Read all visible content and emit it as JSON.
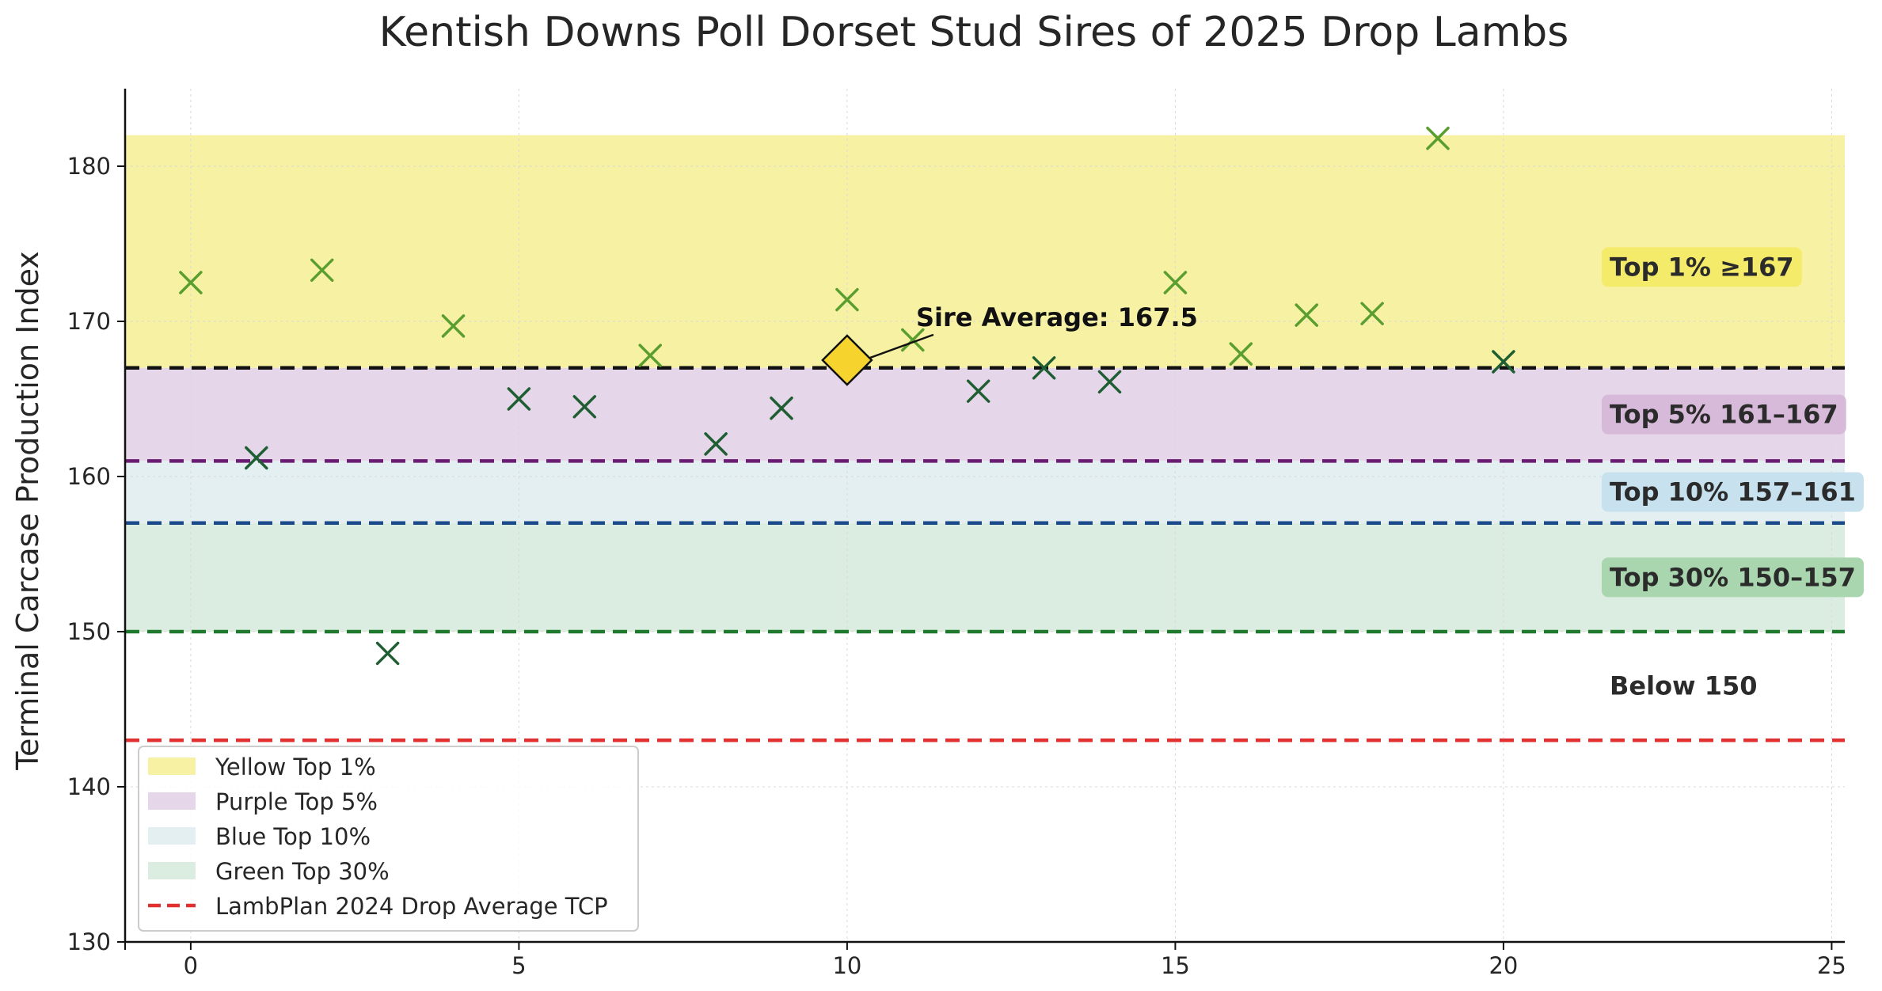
{
  "chart_data": {
    "type": "scatter",
    "title": "Kentish Downs Poll Dorset Stud Sires of 2025 Drop Lambs",
    "xlabel": "",
    "ylabel": "Terminal Carcase Production Index",
    "xlim": [
      -1,
      25.2
    ],
    "ylim": [
      130,
      185
    ],
    "x_ticks": [
      0,
      5,
      10,
      15,
      20,
      25
    ],
    "y_ticks": [
      130,
      140,
      150,
      160,
      170,
      180
    ],
    "grid": true,
    "bands": [
      {
        "name": "Yellow Top 1%",
        "from": 167,
        "to": 182,
        "color": "#f7f1a4"
      },
      {
        "name": "Purple Top 5%",
        "from": 161,
        "to": 167,
        "color": "#e6d6e9"
      },
      {
        "name": "Blue Top 10%",
        "from": 157,
        "to": 161,
        "color": "#e4eff2"
      },
      {
        "name": "Green Top 30%",
        "from": 150,
        "to": 157,
        "color": "#dbede0"
      }
    ],
    "threshold_lines": [
      {
        "y": 167,
        "color": "#111111"
      },
      {
        "y": 161,
        "color": "#6a1b72"
      },
      {
        "y": 157,
        "color": "#1a4a8a"
      },
      {
        "y": 150,
        "color": "#1f7a2e"
      },
      {
        "y": 143,
        "color": "#e03030"
      }
    ],
    "band_labels": [
      {
        "text": "Top 1% ≥167",
        "y": 173.5,
        "bg": "#f5eb6a"
      },
      {
        "text": "Top 5% 161–167",
        "y": 164,
        "bg": "#d7b9d9"
      },
      {
        "text": "Top 10% 157–161",
        "y": 159,
        "bg": "#c7e2ee"
      },
      {
        "text": "Top 30% 150–157",
        "y": 153.5,
        "bg": "#a9d6ae"
      },
      {
        "text": "Below 150",
        "y": 146.5,
        "bg": ""
      }
    ],
    "points": [
      {
        "x": 0,
        "y": 172.5
      },
      {
        "x": 1,
        "y": 161.2
      },
      {
        "x": 2,
        "y": 173.3
      },
      {
        "x": 3,
        "y": 148.6
      },
      {
        "x": 4,
        "y": 169.7
      },
      {
        "x": 5,
        "y": 165.0
      },
      {
        "x": 6,
        "y": 164.5
      },
      {
        "x": 7,
        "y": 167.8
      },
      {
        "x": 8,
        "y": 162.1
      },
      {
        "x": 9,
        "y": 164.4
      },
      {
        "x": 10,
        "y": 171.4
      },
      {
        "x": 11,
        "y": 168.8
      },
      {
        "x": 12,
        "y": 165.5
      },
      {
        "x": 13,
        "y": 167.0
      },
      {
        "x": 14,
        "y": 166.1
      },
      {
        "x": 15,
        "y": 172.5
      },
      {
        "x": 16,
        "y": 167.9
      },
      {
        "x": 17,
        "y": 170.4
      },
      {
        "x": 18,
        "y": 170.5
      },
      {
        "x": 19,
        "y": 181.8
      },
      {
        "x": 20,
        "y": 167.4
      }
    ],
    "colors": {
      "above_average": "#5a9e2f",
      "below_average": "#1e5e32",
      "average_marker": "#f6d32d"
    },
    "average": {
      "x": 10,
      "y": 167.5,
      "label": "Sire Average: 167.5",
      "label_x": 11.05,
      "label_y": 169.7
    },
    "legend": {
      "position": "lower-left",
      "entries": [
        {
          "label": "Yellow Top 1%",
          "kind": "patch",
          "color": "#f7f1a4"
        },
        {
          "label": "Purple Top 5%",
          "kind": "patch",
          "color": "#e6d6e9"
        },
        {
          "label": "Blue Top 10%",
          "kind": "patch",
          "color": "#e4eff2"
        },
        {
          "label": "Green Top 30%",
          "kind": "patch",
          "color": "#dbede0"
        },
        {
          "label": "LambPlan 2024 Drop Average TCP",
          "kind": "dashed-line",
          "color": "#e03030"
        }
      ]
    }
  }
}
